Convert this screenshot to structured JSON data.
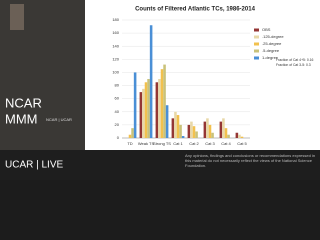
{
  "overlay": {
    "logo_top": "NCAR",
    "logo_bottom": "MMM",
    "logo_small": "NCAR | UCAR",
    "brand": "UCAR | LIVE",
    "disclaimer": "Any opinions, findings and conclusions or recommendations expressed in this material do not necessarily reflect the views of the National Science Foundation."
  },
  "chart_data": {
    "type": "bar",
    "title": "Counts of Filtered Atlantic TCs, 1986-2014",
    "categories": [
      "TD",
      "Weak TS",
      "Strong TS",
      "Cat 1",
      "Cat 2",
      "Cat 3",
      "Cat 4",
      "Cat 5"
    ],
    "series": [
      {
        "name": "OBS",
        "color": "#943634",
        "values": [
          0,
          70,
          85,
          30,
          20,
          25,
          25,
          8
        ]
      },
      {
        "name": ".125-degree",
        "color": "#e8d8a8",
        "values": [
          0,
          75,
          90,
          40,
          25,
          30,
          30,
          5
        ]
      },
      {
        "name": ".25-degree",
        "color": "#f2c14e",
        "values": [
          5,
          85,
          105,
          35,
          18,
          20,
          15,
          2
        ]
      },
      {
        "name": ".5-degree",
        "color": "#c9c27a",
        "values": [
          15,
          90,
          112,
          20,
          10,
          8,
          5,
          0
        ]
      },
      {
        "name": "1-degree",
        "color": "#4a8fd6",
        "values": [
          100,
          172,
          50,
          3,
          0,
          0,
          0,
          0
        ]
      }
    ],
    "ylim": [
      0,
      180
    ],
    "yticks": [
      0,
      20,
      40,
      60,
      80,
      100,
      120,
      140,
      160,
      180
    ],
    "grid": true,
    "annotations": [
      "Fraction of Cat 4+5: 0.16",
      "Fraction of Cat 3-5: 0.3"
    ]
  }
}
